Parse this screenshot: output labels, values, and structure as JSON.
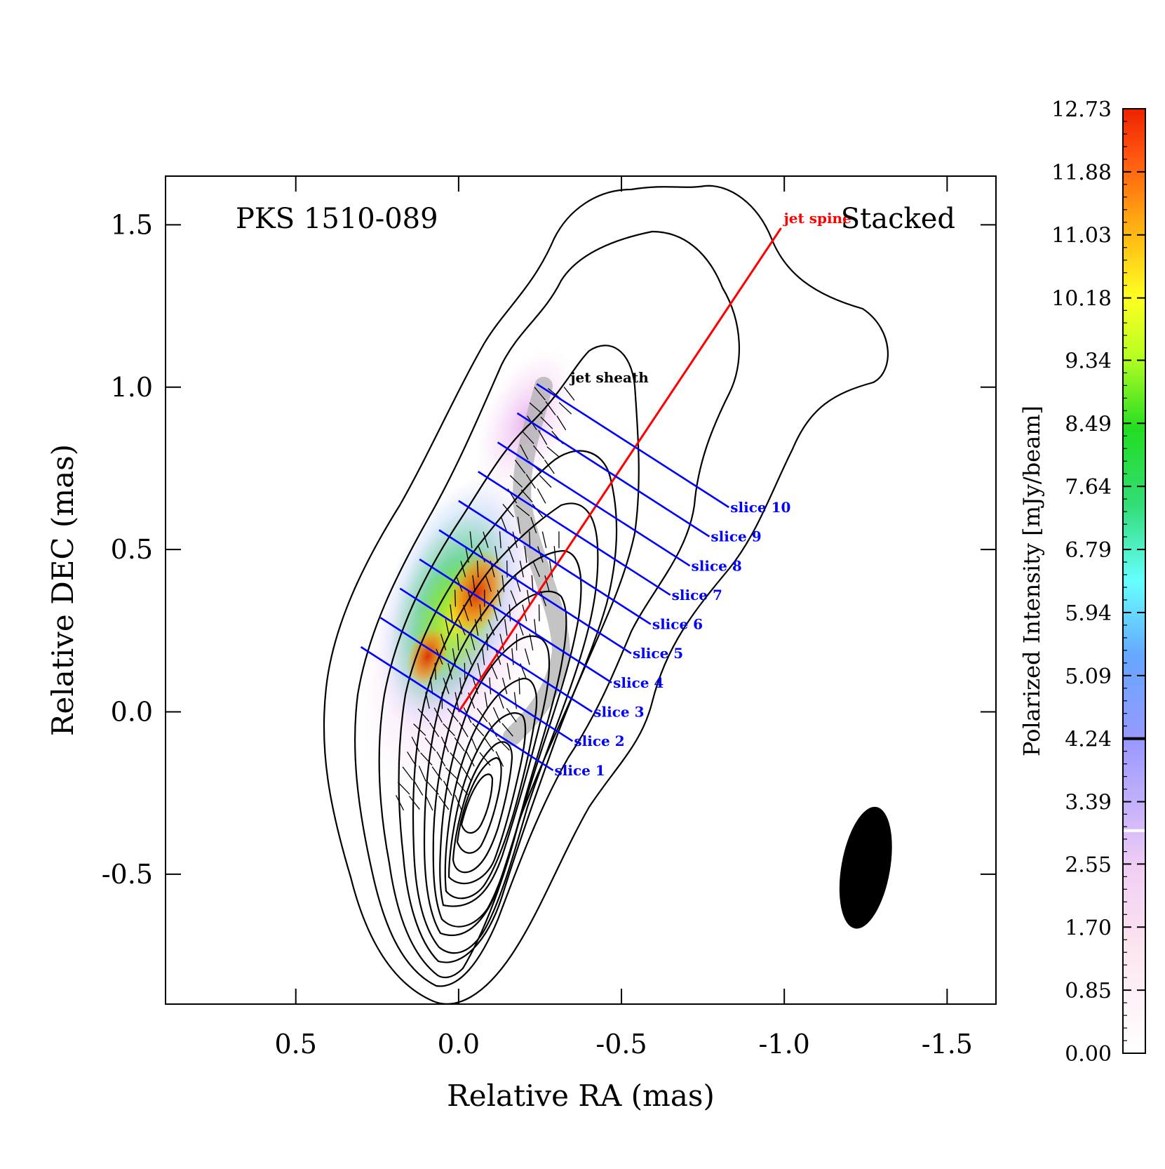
{
  "chart_data": {
    "type": "contour",
    "title": "PKS 1510-089",
    "epoch_label": "Stacked",
    "xlabel": "Relative RA (mas)",
    "ylabel": "Relative DEC (mas)",
    "xlim": [
      0.9,
      -1.65
    ],
    "ylim": [
      -0.9,
      1.65
    ],
    "xticks": [
      0.5,
      0.0,
      -0.5,
      -1.0,
      -1.5
    ],
    "yticks": [
      -0.5,
      0.0,
      0.5,
      1.0,
      1.5
    ],
    "xtick_labels": [
      "0.5",
      "0.0",
      "-0.5",
      "-1.0",
      "-1.5"
    ],
    "ytick_labels": [
      "-0.5",
      "0.0",
      "0.5",
      "1.0",
      "1.5"
    ],
    "colorbar": {
      "label": "Polarized Intensity [mJy/beam]",
      "min": 0.0,
      "max": 12.73,
      "ticks": [
        "12.73",
        "11.88",
        "11.03",
        "10.18",
        "9.34",
        "8.49",
        "7.64",
        "6.79",
        "5.94",
        "5.09",
        "4.24",
        "3.39",
        "2.55",
        "1.70",
        "0.85",
        "0.00"
      ],
      "tick_values": [
        12.73,
        11.88,
        11.03,
        10.18,
        9.34,
        8.49,
        7.64,
        6.79,
        5.94,
        5.09,
        4.24,
        3.39,
        2.55,
        1.7,
        0.85,
        0.0
      ],
      "marker_black": 4.24,
      "marker_white": 3.0
    },
    "jet_spine": {
      "label": "jet spine",
      "color": "#ff0000",
      "start": [
        0.0,
        0.0
      ],
      "end": [
        -0.99,
        1.49
      ]
    },
    "jet_sheath_label": "jet sheath",
    "slices": [
      {
        "label": "slice 1",
        "start": [
          0.3,
          0.2
        ],
        "end": [
          -0.29,
          -0.18
        ]
      },
      {
        "label": "slice 2",
        "start": [
          0.24,
          0.29
        ],
        "end": [
          -0.35,
          -0.09
        ]
      },
      {
        "label": "slice 3",
        "start": [
          0.18,
          0.38
        ],
        "end": [
          -0.41,
          0.0
        ]
      },
      {
        "label": "slice 4",
        "start": [
          0.12,
          0.47
        ],
        "end": [
          -0.47,
          0.09
        ]
      },
      {
        "label": "slice 5",
        "start": [
          0.06,
          0.56
        ],
        "end": [
          -0.53,
          0.18
        ]
      },
      {
        "label": "slice 6",
        "start": [
          0.0,
          0.65
        ],
        "end": [
          -0.59,
          0.27
        ]
      },
      {
        "label": "slice 7",
        "start": [
          -0.06,
          0.74
        ],
        "end": [
          -0.65,
          0.36
        ]
      },
      {
        "label": "slice 8",
        "start": [
          -0.12,
          0.83
        ],
        "end": [
          -0.71,
          0.45
        ]
      },
      {
        "label": "slice 9",
        "start": [
          -0.18,
          0.92
        ],
        "end": [
          -0.77,
          0.54
        ]
      },
      {
        "label": "slice 10",
        "start": [
          -0.24,
          1.01
        ],
        "end": [
          -0.83,
          0.63
        ]
      }
    ],
    "beam": {
      "center": [
        -1.25,
        -0.48
      ],
      "major": 0.38,
      "minor": 0.15,
      "pa_deg": 10
    },
    "slice_color": "#0000ff"
  }
}
